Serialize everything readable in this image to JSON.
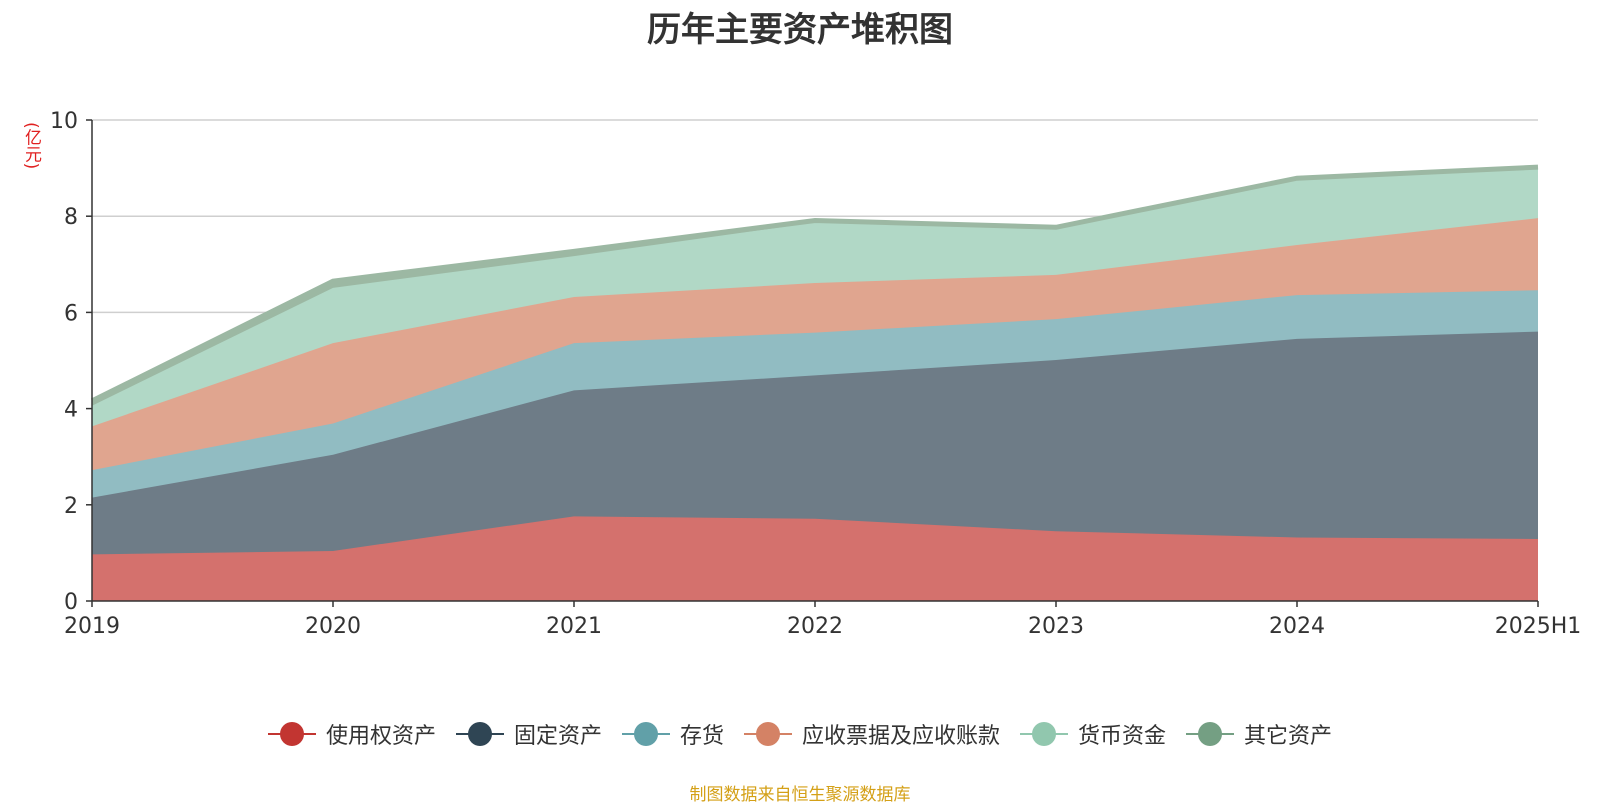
{
  "title": "历年主要资产堆积图",
  "unit_label": "(亿元)",
  "source": "制图数据来自恒生聚源数据库",
  "chart_data": {
    "type": "area",
    "stacked": true,
    "title": "历年主要资产堆积图",
    "ylabel": "(亿元)",
    "ylim": [
      0,
      10
    ],
    "yticks": [
      0,
      2,
      4,
      6,
      8,
      10
    ],
    "categories": [
      "2019",
      "2020",
      "2021",
      "2022",
      "2023",
      "2024",
      "2025H1"
    ],
    "grid": true,
    "legend_position": "bottom",
    "series": [
      {
        "name": "使用权资产",
        "color": "#c23531",
        "fill": "#d4716d",
        "values": [
          0.97,
          1.04,
          1.76,
          1.71,
          1.45,
          1.32,
          1.29
        ]
      },
      {
        "name": "固定资产",
        "color": "#2f4554",
        "fill": "#6e7c87",
        "values": [
          1.18,
          2.0,
          2.62,
          2.98,
          3.56,
          4.13,
          4.31
        ]
      },
      {
        "name": "存货",
        "color": "#61a0a8",
        "fill": "#91bcc2",
        "values": [
          0.57,
          0.65,
          0.98,
          0.89,
          0.85,
          0.91,
          0.86
        ]
      },
      {
        "name": "应收票据及应收账款",
        "color": "#d48265",
        "fill": "#e0a58f",
        "values": [
          0.91,
          1.67,
          0.96,
          1.03,
          0.92,
          1.04,
          1.5
        ]
      },
      {
        "name": "货币资金",
        "color": "#91c7ae",
        "fill": "#b1d8c6",
        "values": [
          0.43,
          1.15,
          0.85,
          1.26,
          0.95,
          1.37,
          1.05
        ]
      },
      {
        "name": "其它资产",
        "color": "#749f83",
        "fill": "#9cb8a3",
        "values": [
          0.1,
          0.14,
          0.1,
          0.04,
          0.04,
          0.02,
          0.01
        ]
      }
    ]
  }
}
